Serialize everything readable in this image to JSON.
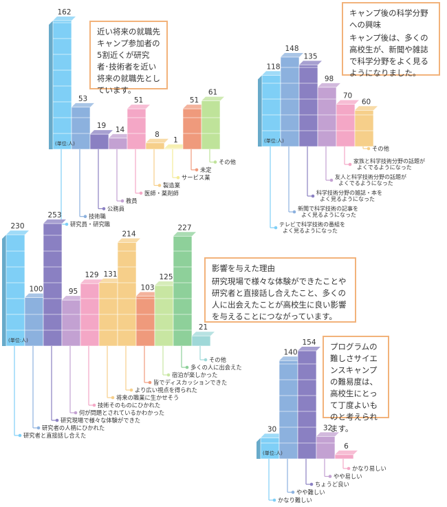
{
  "chart_data": [
    {
      "type": "bar",
      "unit_label": "(単位:人)",
      "categories": [
        "研究員・研究職",
        "技術職",
        "公務員",
        "教員",
        "医師・薬剤師",
        "製造業",
        "サービス業",
        "未定",
        "その他"
      ],
      "values": [
        162,
        53,
        19,
        14,
        51,
        8,
        1,
        51,
        61
      ],
      "colors": [
        "#7fcff6",
        "#8cb1de",
        "#8a80c2",
        "#c3a1d2",
        "#f4a7c6",
        "#f6cf8a",
        "#f3eb98",
        "#ef9a7c",
        "#bfe39a"
      ]
    },
    {
      "type": "bar",
      "unit_label": "(単位:人)",
      "categories": [
        "テレビで科学技術の番組をよく見るようになった",
        "新聞で科学技術の記事をよく見るようになった",
        "科学技術分野の雑誌・本をよく見るようになった",
        "友人と科学技術分野の話題がよくでるようになった",
        "家族と科学技術分野の話題がよくでるようになった",
        "その他"
      ],
      "values": [
        118,
        148,
        135,
        98,
        70,
        60
      ],
      "colors": [
        "#7fcff6",
        "#8cb1de",
        "#8a80c2",
        "#c3a1d2",
        "#f4a7c6",
        "#f6cf8a"
      ]
    },
    {
      "type": "bar",
      "unit_label": "(単位:人)",
      "categories": [
        "研究者と直接話し合えた",
        "研究者の人柄にひかれた",
        "研究現場で様々な体験ができた",
        "何が問題とされているかわかった",
        "技術そのものにひかれた",
        "将来の職業に生かせそう",
        "より広い視点を得られた",
        "皆でディスカッションできた",
        "宿泊が楽しかった",
        "多くの人に出会えた",
        "その他"
      ],
      "values": [
        230,
        100,
        253,
        95,
        129,
        131,
        214,
        103,
        125,
        227,
        21
      ],
      "colors": [
        "#7fcff6",
        "#8cb1de",
        "#8a80c2",
        "#c3a1d2",
        "#f4a7c6",
        "#f6cf8a",
        "#f6cf8a",
        "#ef9a7c",
        "#c8e6a2",
        "#8ed09a",
        "#9fd8d8"
      ]
    },
    {
      "type": "bar",
      "unit_label": "(単位:人)",
      "categories": [
        "かなり難しい",
        "やや難しい",
        "ちょうど良い",
        "やや易しい",
        "かなり易しい"
      ],
      "values": [
        30,
        140,
        154,
        32,
        6
      ],
      "colors": [
        "#7fcff6",
        "#8cb1de",
        "#8a80c2",
        "#c3a1d2",
        "#f4a7c6"
      ]
    }
  ],
  "notes": [
    {
      "title": "",
      "body": "近い将来の就職先キャンプ参加者の5割近くが研究者･技術者を近い将来の就職先としています。"
    },
    {
      "title": "キャンプ後の科学分野への興味",
      "body": "キャンプ後は、多くの高校生が、新聞や雑誌で科学分野をよく見るようになりました。"
    },
    {
      "title": "影響を与えた理由",
      "body": "研究現場で様々な体験ができたことや研究者と直接話し合えたこと、多くの人に出会えたことが高校生に良い影響を与えることにつながっています。"
    },
    {
      "title": "",
      "body": "プログラムの難しさサイエンスキャンプの難易度は、高校生にとって丁度よいものと考えられます。"
    }
  ]
}
